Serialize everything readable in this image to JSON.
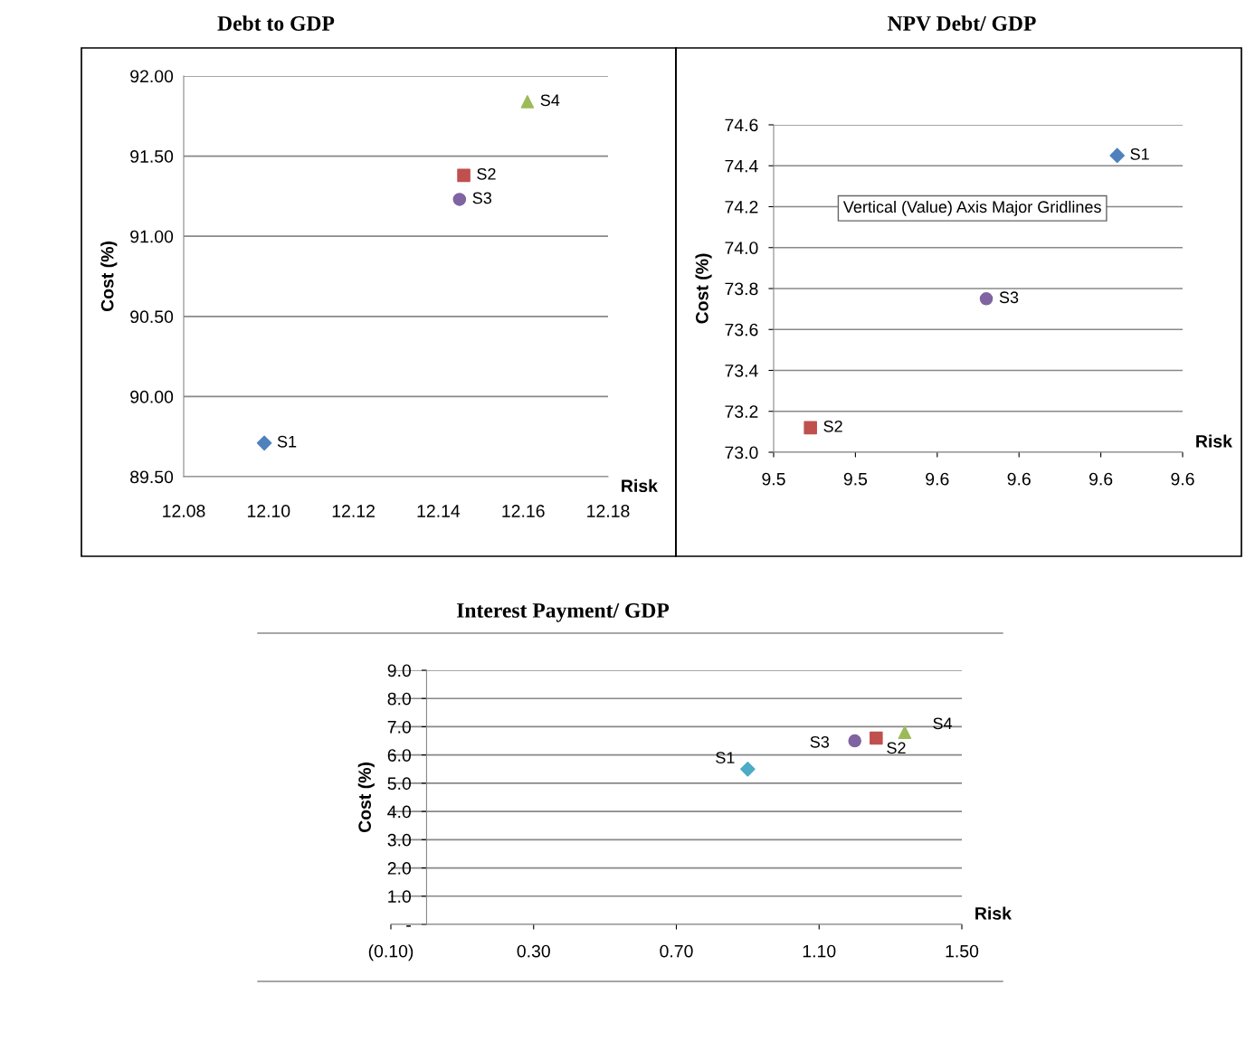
{
  "chart_data": [
    {
      "type": "scatter",
      "title": "Debt to GDP",
      "xlabel": "Risk",
      "ylabel": "Cost (%)",
      "xlim": [
        12.08,
        12.18
      ],
      "xticks": [
        {
          "value": 12.08,
          "label": "12.08"
        },
        {
          "value": 12.1,
          "label": "12.10"
        },
        {
          "value": 12.12,
          "label": "12.12"
        },
        {
          "value": 12.14,
          "label": "12.14"
        },
        {
          "value": 12.16,
          "label": "12.16"
        },
        {
          "value": 12.18,
          "label": "12.18"
        }
      ],
      "ylim": [
        89.5,
        92.0
      ],
      "yticks": [
        {
          "value": 89.5,
          "label": "89.50"
        },
        {
          "value": 90.0,
          "label": "90.00"
        },
        {
          "value": 90.5,
          "label": "90.50"
        },
        {
          "value": 91.0,
          "label": "91.00"
        },
        {
          "value": 91.5,
          "label": "91.50"
        },
        {
          "value": 92.0,
          "label": "92.00"
        }
      ],
      "grid": "y",
      "legend": false,
      "series": [
        {
          "name": "S1",
          "color": "#4f81bd",
          "marker": "diamond",
          "x": [
            12.099
          ],
          "values": [
            89.71
          ]
        },
        {
          "name": "S2",
          "color": "#c0504d",
          "marker": "square",
          "x": [
            12.146
          ],
          "values": [
            91.38
          ]
        },
        {
          "name": "S3",
          "color": "#8064a2",
          "marker": "circle",
          "x": [
            12.145
          ],
          "values": [
            91.23
          ]
        },
        {
          "name": "S4",
          "color": "#9bbb59",
          "marker": "triangle",
          "x": [
            12.161
          ],
          "values": [
            91.84
          ]
        }
      ]
    },
    {
      "type": "scatter",
      "title": "NPV Debt/ GDP",
      "xlabel": "Risk",
      "ylabel": "Cost (%)",
      "annotations": [
        "Vertical (Value) Axis Major Gridlines"
      ],
      "xlim": [
        9.51,
        9.61
      ],
      "xticks": [
        {
          "value": 9.51,
          "label": "9.5"
        },
        {
          "value": 9.53,
          "label": "9.5"
        },
        {
          "value": 9.55,
          "label": "9.6"
        },
        {
          "value": 9.57,
          "label": "9.6"
        },
        {
          "value": 9.59,
          "label": "9.6"
        },
        {
          "value": 9.61,
          "label": "9.6"
        }
      ],
      "ylim": [
        73.0,
        74.6
      ],
      "yticks": [
        {
          "value": 73.0,
          "label": "73.0"
        },
        {
          "value": 73.2,
          "label": "73.2"
        },
        {
          "value": 73.4,
          "label": "73.4"
        },
        {
          "value": 73.6,
          "label": "73.6"
        },
        {
          "value": 73.8,
          "label": "73.8"
        },
        {
          "value": 74.0,
          "label": "74.0"
        },
        {
          "value": 74.2,
          "label": "74.2"
        },
        {
          "value": 74.4,
          "label": "74.4"
        },
        {
          "value": 74.6,
          "label": "74.6"
        }
      ],
      "grid": "y",
      "legend": false,
      "series": [
        {
          "name": "S1",
          "color": "#4f81bd",
          "marker": "diamond",
          "x": [
            9.594
          ],
          "values": [
            74.45
          ]
        },
        {
          "name": "S2",
          "color": "#c0504d",
          "marker": "square",
          "x": [
            9.519
          ],
          "values": [
            73.12
          ]
        },
        {
          "name": "S3",
          "color": "#8064a2",
          "marker": "circle",
          "x": [
            9.562
          ],
          "values": [
            73.75
          ]
        }
      ]
    },
    {
      "type": "scatter",
      "title": "Interest Payment/ GDP",
      "xlabel": "Risk",
      "ylabel": "Cost (%)",
      "xlim": [
        -0.1,
        1.5
      ],
      "xticks": [
        {
          "value": -0.1,
          "label": "(0.10)"
        },
        {
          "value": 0.3,
          "label": "0.30"
        },
        {
          "value": 0.7,
          "label": "0.70"
        },
        {
          "value": 1.1,
          "label": "1.10"
        },
        {
          "value": 1.5,
          "label": "1.50"
        }
      ],
      "ylim": [
        0,
        9
      ],
      "yticks": [
        {
          "value": 0,
          "label": "-"
        },
        {
          "value": 1,
          "label": "1.0"
        },
        {
          "value": 2,
          "label": "2.0"
        },
        {
          "value": 3,
          "label": "3.0"
        },
        {
          "value": 4,
          "label": "4.0"
        },
        {
          "value": 5,
          "label": "5.0"
        },
        {
          "value": 6,
          "label": "6.0"
        },
        {
          "value": 7,
          "label": "7.0"
        },
        {
          "value": 8,
          "label": "8.0"
        },
        {
          "value": 9,
          "label": "9.0"
        }
      ],
      "grid": "y",
      "legend": false,
      "series": [
        {
          "name": "S1",
          "color": "#4bacc6",
          "marker": "diamond",
          "x": [
            0.9
          ],
          "values": [
            5.5
          ]
        },
        {
          "name": "S3",
          "color": "#8064a2",
          "marker": "circle",
          "x": [
            1.2
          ],
          "values": [
            6.5
          ]
        },
        {
          "name": "S2",
          "color": "#c0504d",
          "marker": "square",
          "x": [
            1.26
          ],
          "values": [
            6.6
          ]
        },
        {
          "name": "S4",
          "color": "#9bbb59",
          "marker": "triangle",
          "x": [
            1.34
          ],
          "values": [
            6.8
          ]
        }
      ]
    }
  ]
}
